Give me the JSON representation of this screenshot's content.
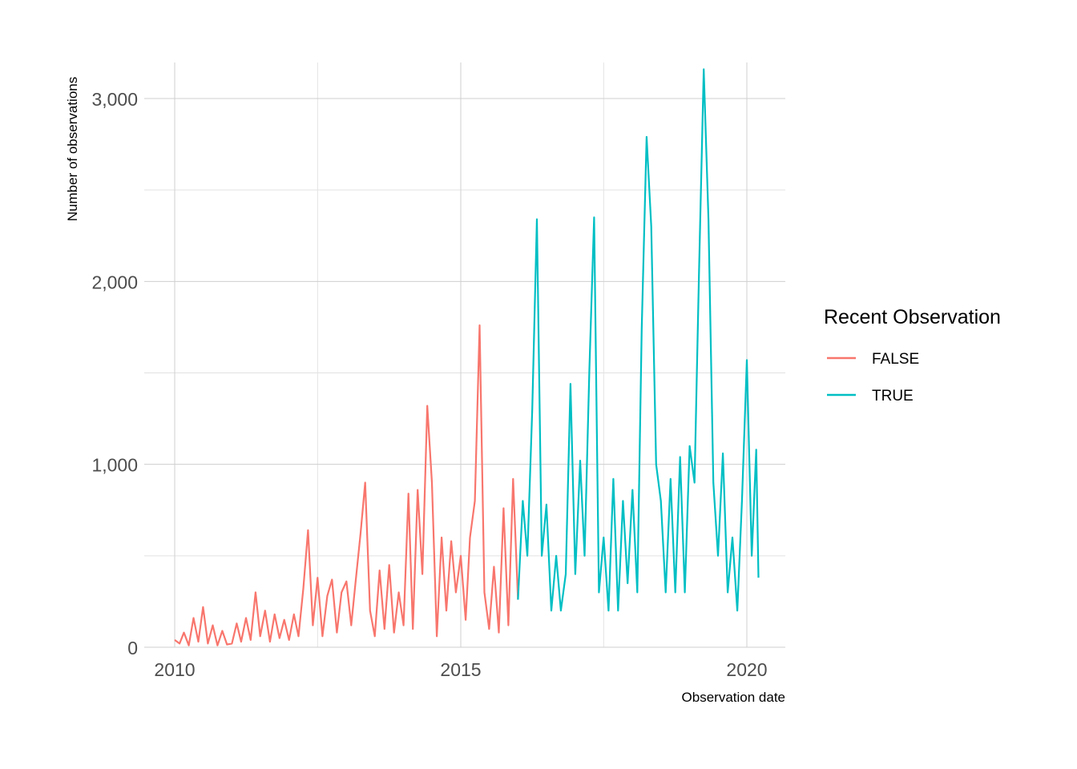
{
  "chart_data": {
    "type": "line",
    "title": "",
    "xlabel": "Observation date",
    "ylabel": "Number of observations",
    "x_range": [
      "2010-01-01",
      "2020-07-01"
    ],
    "ylim": [
      0,
      3200
    ],
    "x_ticks": [
      {
        "date": "2010-01-01",
        "label": "2010"
      },
      {
        "date": "2015-01-01",
        "label": "2015"
      },
      {
        "date": "2020-01-01",
        "label": "2020"
      }
    ],
    "y_ticks": [
      {
        "value": 0,
        "label": "0"
      },
      {
        "value": 1000,
        "label": "1,000"
      },
      {
        "value": 2000,
        "label": "2,000"
      },
      {
        "value": 3000,
        "label": "3,000"
      }
    ],
    "grid": true,
    "legend": {
      "title": "Recent Observation",
      "position": "right"
    },
    "series": [
      {
        "name": "FALSE",
        "color": "#F8766D",
        "points": [
          {
            "x": "2010-01-01",
            "y": 40
          },
          {
            "x": "2010-02-01",
            "y": 20
          },
          {
            "x": "2010-03-01",
            "y": 80
          },
          {
            "x": "2010-04-01",
            "y": 10
          },
          {
            "x": "2010-05-01",
            "y": 160
          },
          {
            "x": "2010-06-01",
            "y": 30
          },
          {
            "x": "2010-07-01",
            "y": 220
          },
          {
            "x": "2010-08-01",
            "y": 20
          },
          {
            "x": "2010-09-01",
            "y": 120
          },
          {
            "x": "2010-10-01",
            "y": 10
          },
          {
            "x": "2010-11-01",
            "y": 90
          },
          {
            "x": "2010-12-01",
            "y": 15
          },
          {
            "x": "2011-01-01",
            "y": 20
          },
          {
            "x": "2011-02-01",
            "y": 130
          },
          {
            "x": "2011-03-01",
            "y": 30
          },
          {
            "x": "2011-04-01",
            "y": 160
          },
          {
            "x": "2011-05-01",
            "y": 40
          },
          {
            "x": "2011-06-01",
            "y": 300
          },
          {
            "x": "2011-07-01",
            "y": 60
          },
          {
            "x": "2011-08-01",
            "y": 200
          },
          {
            "x": "2011-09-01",
            "y": 30
          },
          {
            "x": "2011-10-01",
            "y": 180
          },
          {
            "x": "2011-11-01",
            "y": 50
          },
          {
            "x": "2011-12-01",
            "y": 150
          },
          {
            "x": "2012-01-01",
            "y": 40
          },
          {
            "x": "2012-02-01",
            "y": 180
          },
          {
            "x": "2012-03-01",
            "y": 60
          },
          {
            "x": "2012-04-01",
            "y": 320
          },
          {
            "x": "2012-05-01",
            "y": 640
          },
          {
            "x": "2012-06-01",
            "y": 120
          },
          {
            "x": "2012-07-01",
            "y": 380
          },
          {
            "x": "2012-08-01",
            "y": 60
          },
          {
            "x": "2012-09-01",
            "y": 280
          },
          {
            "x": "2012-10-01",
            "y": 370
          },
          {
            "x": "2012-11-01",
            "y": 80
          },
          {
            "x": "2012-12-01",
            "y": 300
          },
          {
            "x": "2013-01-01",
            "y": 360
          },
          {
            "x": "2013-02-01",
            "y": 120
          },
          {
            "x": "2013-03-01",
            "y": 360
          },
          {
            "x": "2013-04-01",
            "y": 620
          },
          {
            "x": "2013-05-01",
            "y": 900
          },
          {
            "x": "2013-06-01",
            "y": 200
          },
          {
            "x": "2013-07-01",
            "y": 60
          },
          {
            "x": "2013-08-01",
            "y": 420
          },
          {
            "x": "2013-09-01",
            "y": 100
          },
          {
            "x": "2013-10-01",
            "y": 450
          },
          {
            "x": "2013-11-01",
            "y": 80
          },
          {
            "x": "2013-12-01",
            "y": 300
          },
          {
            "x": "2014-01-01",
            "y": 120
          },
          {
            "x": "2014-02-01",
            "y": 840
          },
          {
            "x": "2014-03-01",
            "y": 100
          },
          {
            "x": "2014-04-01",
            "y": 860
          },
          {
            "x": "2014-05-01",
            "y": 400
          },
          {
            "x": "2014-06-01",
            "y": 1320
          },
          {
            "x": "2014-07-01",
            "y": 900
          },
          {
            "x": "2014-08-01",
            "y": 60
          },
          {
            "x": "2014-09-01",
            "y": 600
          },
          {
            "x": "2014-10-01",
            "y": 200
          },
          {
            "x": "2014-11-01",
            "y": 580
          },
          {
            "x": "2014-12-01",
            "y": 300
          },
          {
            "x": "2015-01-01",
            "y": 500
          },
          {
            "x": "2015-02-01",
            "y": 150
          },
          {
            "x": "2015-03-01",
            "y": 600
          },
          {
            "x": "2015-04-01",
            "y": 800
          },
          {
            "x": "2015-05-01",
            "y": 1760
          },
          {
            "x": "2015-06-01",
            "y": 300
          },
          {
            "x": "2015-07-01",
            "y": 100
          },
          {
            "x": "2015-08-01",
            "y": 440
          },
          {
            "x": "2015-09-01",
            "y": 80
          },
          {
            "x": "2015-10-01",
            "y": 760
          },
          {
            "x": "2015-11-01",
            "y": 120
          },
          {
            "x": "2015-12-01",
            "y": 920
          },
          {
            "x": "2016-01-01",
            "y": 260
          }
        ]
      },
      {
        "name": "TRUE",
        "color": "#00BFC4",
        "points": [
          {
            "x": "2016-01-01",
            "y": 260
          },
          {
            "x": "2016-02-01",
            "y": 800
          },
          {
            "x": "2016-03-01",
            "y": 500
          },
          {
            "x": "2016-04-01",
            "y": 1300
          },
          {
            "x": "2016-05-01",
            "y": 2340
          },
          {
            "x": "2016-06-01",
            "y": 500
          },
          {
            "x": "2016-07-01",
            "y": 780
          },
          {
            "x": "2016-08-01",
            "y": 200
          },
          {
            "x": "2016-09-01",
            "y": 500
          },
          {
            "x": "2016-10-01",
            "y": 200
          },
          {
            "x": "2016-11-01",
            "y": 400
          },
          {
            "x": "2016-12-01",
            "y": 1440
          },
          {
            "x": "2017-01-01",
            "y": 400
          },
          {
            "x": "2017-02-01",
            "y": 1020
          },
          {
            "x": "2017-03-01",
            "y": 500
          },
          {
            "x": "2017-04-01",
            "y": 1520
          },
          {
            "x": "2017-05-01",
            "y": 2350
          },
          {
            "x": "2017-06-01",
            "y": 300
          },
          {
            "x": "2017-07-01",
            "y": 600
          },
          {
            "x": "2017-08-01",
            "y": 200
          },
          {
            "x": "2017-09-01",
            "y": 920
          },
          {
            "x": "2017-10-01",
            "y": 200
          },
          {
            "x": "2017-11-01",
            "y": 800
          },
          {
            "x": "2017-12-01",
            "y": 350
          },
          {
            "x": "2018-01-01",
            "y": 860
          },
          {
            "x": "2018-02-01",
            "y": 300
          },
          {
            "x": "2018-03-01",
            "y": 1740
          },
          {
            "x": "2018-04-01",
            "y": 2790
          },
          {
            "x": "2018-05-01",
            "y": 2300
          },
          {
            "x": "2018-06-01",
            "y": 1000
          },
          {
            "x": "2018-07-01",
            "y": 800
          },
          {
            "x": "2018-08-01",
            "y": 300
          },
          {
            "x": "2018-09-01",
            "y": 920
          },
          {
            "x": "2018-10-01",
            "y": 300
          },
          {
            "x": "2018-11-01",
            "y": 1040
          },
          {
            "x": "2018-12-01",
            "y": 300
          },
          {
            "x": "2019-01-01",
            "y": 1100
          },
          {
            "x": "2019-02-01",
            "y": 900
          },
          {
            "x": "2019-03-01",
            "y": 2030
          },
          {
            "x": "2019-04-01",
            "y": 3160
          },
          {
            "x": "2019-05-01",
            "y": 2340
          },
          {
            "x": "2019-06-01",
            "y": 900
          },
          {
            "x": "2019-07-01",
            "y": 500
          },
          {
            "x": "2019-08-01",
            "y": 1060
          },
          {
            "x": "2019-09-01",
            "y": 300
          },
          {
            "x": "2019-10-01",
            "y": 600
          },
          {
            "x": "2019-11-01",
            "y": 200
          },
          {
            "x": "2019-12-01",
            "y": 800
          },
          {
            "x": "2020-01-01",
            "y": 1570
          },
          {
            "x": "2020-02-01",
            "y": 500
          },
          {
            "x": "2020-03-01",
            "y": 1080
          },
          {
            "x": "2020-03-15",
            "y": 380
          }
        ]
      }
    ]
  }
}
